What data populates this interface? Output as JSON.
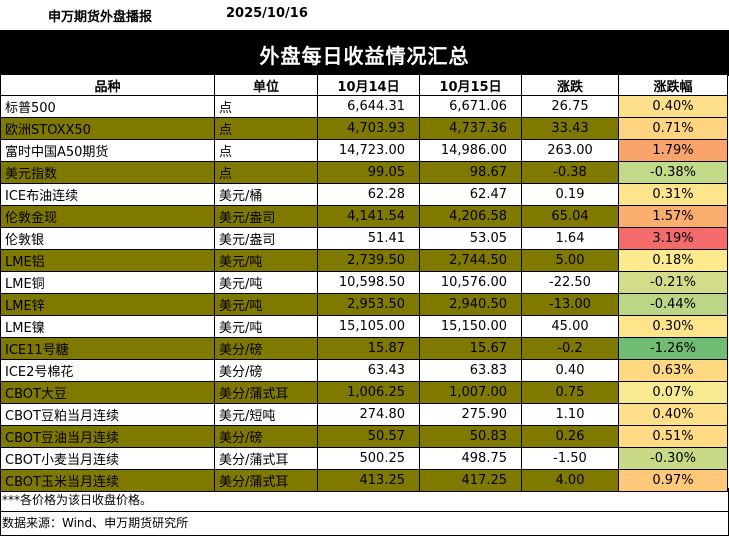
{
  "header": {
    "source": "申万期货外盘播报",
    "date": "2025/10/16"
  },
  "title": "外盘每日收益情况汇总",
  "columns": [
    "品种",
    "单位",
    "10月14日",
    "10月15日",
    "涨跌",
    "涨跌幅"
  ],
  "rows": [
    {
      "name": "标普500",
      "unit": "点",
      "d1": "6,644.31",
      "d2": "6,671.06",
      "chg": "26.75",
      "pct": "0.40%",
      "pct_color": "#ffe08a"
    },
    {
      "name": "欧洲STOXX50",
      "unit": "点",
      "d1": "4,703.93",
      "d2": "4,737.36",
      "chg": "33.43",
      "pct": "0.71%",
      "pct_color": "#ffd480"
    },
    {
      "name": "富时中国A50期货",
      "unit": "点",
      "d1": "14,723.00",
      "d2": "14,986.00",
      "chg": "263.00",
      "pct": "1.79%",
      "pct_color": "#f9a46a"
    },
    {
      "name": "美元指数",
      "unit": "点",
      "d1": "99.05",
      "d2": "98.67",
      "chg": "-0.38",
      "pct": "-0.38%",
      "pct_color": "#c2d987"
    },
    {
      "name": "ICE布油连续",
      "unit": "美元/桶",
      "d1": "62.28",
      "d2": "62.47",
      "chg": "0.19",
      "pct": "0.31%",
      "pct_color": "#fee58c"
    },
    {
      "name": "伦敦金现",
      "unit": "美元/盎司",
      "d1": "4,141.54",
      "d2": "4,206.58",
      "chg": "65.04",
      "pct": "1.57%",
      "pct_color": "#faae6e"
    },
    {
      "name": "伦敦银",
      "unit": "美元/盎司",
      "d1": "51.41",
      "d2": "53.05",
      "chg": "1.64",
      "pct": "3.19%",
      "pct_color": "#f46b6b"
    },
    {
      "name": "LME铝",
      "unit": "美元/吨",
      "d1": "2,739.50",
      "d2": "2,744.50",
      "chg": "5.00",
      "pct": "0.18%",
      "pct_color": "#fde98e"
    },
    {
      "name": "LME铜",
      "unit": "美元/吨",
      "d1": "10,598.50",
      "d2": "10,576.00",
      "chg": "-22.50",
      "pct": "-0.21%",
      "pct_color": "#d3dc88"
    },
    {
      "name": "LME锌",
      "unit": "美元/吨",
      "d1": "2,953.50",
      "d2": "2,940.50",
      "chg": "-13.00",
      "pct": "-0.44%",
      "pct_color": "#bcd685"
    },
    {
      "name": "LME镍",
      "unit": "美元/吨",
      "d1": "15,105.00",
      "d2": "15,150.00",
      "chg": "45.00",
      "pct": "0.30%",
      "pct_color": "#fee58c"
    },
    {
      "name": "ICE11号糖",
      "unit": "美分/磅",
      "d1": "15.87",
      "d2": "15.67",
      "chg": "-0.2",
      "pct": "-1.26%",
      "pct_color": "#6fbe73"
    },
    {
      "name": "ICE2号棉花",
      "unit": "美分/磅",
      "d1": "63.43",
      "d2": "63.83",
      "chg": "0.40",
      "pct": "0.63%",
      "pct_color": "#ffd882"
    },
    {
      "name": "CBOT大豆",
      "unit": "美分/蒲式耳",
      "d1": "1,006.25",
      "d2": "1,007.00",
      "chg": "0.75",
      "pct": "0.07%",
      "pct_color": "#f8ea90"
    },
    {
      "name": "CBOT豆粕当月连续",
      "unit": "美元/短吨",
      "d1": "274.80",
      "d2": "275.90",
      "chg": "1.10",
      "pct": "0.40%",
      "pct_color": "#ffe08a"
    },
    {
      "name": "CBOT豆油当月连续",
      "unit": "美分/磅",
      "d1": "50.57",
      "d2": "50.83",
      "chg": "0.26",
      "pct": "0.51%",
      "pct_color": "#ffdb85"
    },
    {
      "name": "CBOT小麦当月连续",
      "unit": "美分/蒲式耳",
      "d1": "500.25",
      "d2": "498.75",
      "chg": "-1.50",
      "pct": "-0.30%",
      "pct_color": "#c9da87"
    },
    {
      "name": "CBOT玉米当月连续",
      "unit": "美分/蒲式耳",
      "d1": "413.25",
      "d2": "417.25",
      "chg": "4.00",
      "pct": "0.97%",
      "pct_color": "#fdc879"
    }
  ],
  "footer": {
    "note": "***各价格为该日收盘价格。",
    "source": "数据来源：Wind、申万期货研究所"
  },
  "colors": {
    "shade_row": "#7f7900",
    "title_bg": "#000000"
  }
}
